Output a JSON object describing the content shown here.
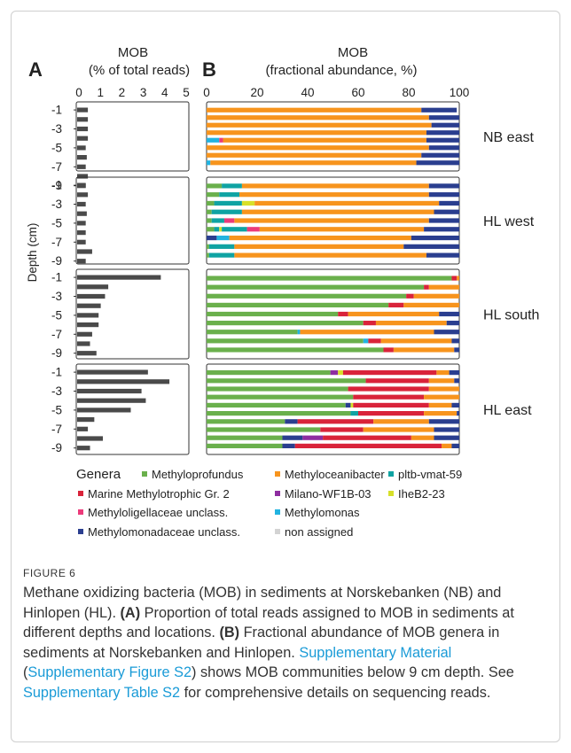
{
  "figure": {
    "label": "FIGURE 6",
    "caption": {
      "intro": "Methane oxidizing bacteria (MOB) in sediments at Norskebanken (NB) and Hinlopen (HL).",
      "a_tag": "(A)",
      "a_text": "Proportion of total reads assigned to MOB in sediments at different depths and locations.",
      "b_tag": "(B)",
      "b_text": "Fractional abundance of MOB genera in sediments at Norskebanken and Hinlopen.",
      "link1": "Supplementary Material",
      "paren_open": "(",
      "link2": "Supplementary Figure S2",
      "paren_close": ")",
      "shows_text": "shows MOB communities below 9 cm depth. See",
      "link3": "Supplementary Table S2",
      "tail_text": "for comprehensive details on sequencing reads."
    }
  },
  "chart_data": [
    {
      "type": "bar",
      "orientation": "horizontal",
      "panel": "A",
      "title": "MOB",
      "subtitle": "(% of total reads)",
      "ylabel": "Depth (cm)",
      "xlim": [
        0,
        5
      ],
      "xticks": [
        "0",
        "1",
        "2",
        "3",
        "4",
        "5"
      ],
      "depth_tick_labels": [
        "-1",
        "-3",
        "-5",
        "-7",
        "-9"
      ],
      "depths": [
        -1,
        -2,
        -3,
        -4,
        -5,
        -6,
        -7,
        -8,
        -9
      ],
      "series": [
        {
          "location": "NB east",
          "values": [
            0.5,
            0.5,
            0.5,
            0.5,
            0.4,
            0.45,
            0.4,
            0.5,
            0.4
          ]
        },
        {
          "location": "HL west",
          "values": [
            0.4,
            0.5,
            0.4,
            0.45,
            0.4,
            0.4,
            0.4,
            0.7,
            0.4
          ]
        },
        {
          "location": "HL south",
          "values": [
            3.9,
            1.45,
            1.3,
            1.1,
            1.0,
            1.0,
            0.7,
            0.6,
            0.9
          ]
        },
        {
          "location": "HL east",
          "values": [
            3.3,
            4.3,
            3.0,
            3.2,
            2.5,
            0.8,
            0.5,
            1.2,
            0.6
          ]
        }
      ]
    },
    {
      "type": "bar",
      "orientation": "horizontal",
      "stacked": true,
      "panel": "B",
      "title": "MOB",
      "subtitle": "(fractional abundance, %)",
      "xlim": [
        0,
        100
      ],
      "xticks": [
        "0",
        "20",
        "40",
        "60",
        "80",
        "100"
      ],
      "legend_title": "Genera",
      "legend": [
        {
          "name": "Methyloprofundus",
          "color": "#6ab04c"
        },
        {
          "name": "Methyloceanibacter",
          "color": "#f7941d"
        },
        {
          "name": "pltb-vmat-59",
          "color": "#0fa3a3"
        },
        {
          "name": "Marine Methylotrophic Gr. 2",
          "color": "#d9233a"
        },
        {
          "name": "Milano-WF1B-03",
          "color": "#8e2da0"
        },
        {
          "name": "IheB2-23",
          "color": "#d7e029"
        },
        {
          "name": "Methyloligellaceae unclass.",
          "color": "#ec3a7a"
        },
        {
          "name": "Methylomonas",
          "color": "#22b3e0"
        },
        {
          "name": "Methylomonadaceae unclass.",
          "color": "#2a3e8f"
        },
        {
          "name": "non assigned",
          "color": "#d3d3d3"
        }
      ],
      "panels": [
        {
          "location": "NB east",
          "rows": [
            [
              [
                1,
                85
              ],
              [
                8,
                14
              ]
            ],
            [
              [
                1,
                88
              ],
              [
                8,
                12
              ]
            ],
            [
              [
                1,
                89
              ],
              [
                8,
                11
              ]
            ],
            [
              [
                1,
                87
              ],
              [
                8,
                13
              ]
            ],
            [
              [
                7,
                5
              ],
              [
                6,
                1.5
              ],
              [
                1,
                80.5
              ],
              [
                8,
                13
              ]
            ],
            [
              [
                1,
                88
              ],
              [
                8,
                12
              ]
            ],
            [
              [
                1,
                85
              ],
              [
                8,
                15
              ]
            ],
            [
              [
                7,
                1.5
              ],
              [
                1,
                81.5
              ],
              [
                8,
                17
              ]
            ]
          ]
        },
        {
          "location": "HL west",
          "rows": [
            [
              [
                0,
                6
              ],
              [
                2,
                8
              ],
              [
                1,
                74
              ],
              [
                8,
                12
              ]
            ],
            [
              [
                0,
                5
              ],
              [
                2,
                8
              ],
              [
                1,
                75
              ],
              [
                8,
                12
              ]
            ],
            [
              [
                0,
                3
              ],
              [
                2,
                11
              ],
              [
                5,
                5
              ],
              [
                1,
                73
              ],
              [
                8,
                8
              ]
            ],
            [
              [
                0,
                2
              ],
              [
                2,
                12
              ],
              [
                1,
                76
              ],
              [
                8,
                10
              ]
            ],
            [
              [
                0,
                2
              ],
              [
                2,
                5
              ],
              [
                6,
                4
              ],
              [
                1,
                77
              ],
              [
                8,
                12
              ]
            ],
            [
              [
                0,
                3
              ],
              [
                2,
                2
              ],
              [
                5,
                1
              ],
              [
                2,
                10
              ],
              [
                6,
                5
              ],
              [
                1,
                65
              ],
              [
                8,
                14
              ]
            ],
            [
              [
                8,
                4
              ],
              [
                7,
                5
              ],
              [
                1,
                72
              ],
              [
                8,
                19
              ]
            ],
            [
              [
                0,
                1
              ],
              [
                2,
                10
              ],
              [
                1,
                67
              ],
              [
                8,
                22
              ]
            ],
            [
              [
                0,
                1
              ],
              [
                2,
                10
              ],
              [
                1,
                76
              ],
              [
                8,
                13
              ]
            ]
          ]
        },
        {
          "location": "HL south",
          "rows": [
            [
              [
                0,
                97
              ],
              [
                3,
                2
              ],
              [
                1,
                1
              ]
            ],
            [
              [
                0,
                86
              ],
              [
                3,
                2
              ],
              [
                1,
                12
              ]
            ],
            [
              [
                0,
                79
              ],
              [
                3,
                3
              ],
              [
                1,
                18
              ]
            ],
            [
              [
                0,
                72
              ],
              [
                3,
                6
              ],
              [
                1,
                22
              ]
            ],
            [
              [
                0,
                52
              ],
              [
                3,
                4
              ],
              [
                1,
                36
              ],
              [
                8,
                8
              ]
            ],
            [
              [
                0,
                62
              ],
              [
                3,
                5
              ],
              [
                1,
                28
              ],
              [
                8,
                5
              ]
            ],
            [
              [
                0,
                36
              ],
              [
                7,
                1
              ],
              [
                1,
                53
              ],
              [
                8,
                10
              ]
            ],
            [
              [
                0,
                62
              ],
              [
                7,
                2
              ],
              [
                3,
                5
              ],
              [
                1,
                28
              ],
              [
                8,
                3
              ]
            ],
            [
              [
                0,
                70
              ],
              [
                3,
                4
              ],
              [
                1,
                24
              ],
              [
                8,
                2
              ]
            ]
          ]
        },
        {
          "location": "HL east",
          "rows": [
            [
              [
                0,
                49
              ],
              [
                4,
                3
              ],
              [
                5,
                2
              ],
              [
                3,
                37
              ],
              [
                1,
                5
              ],
              [
                8,
                4
              ]
            ],
            [
              [
                0,
                63
              ],
              [
                3,
                25
              ],
              [
                1,
                10
              ],
              [
                8,
                2
              ]
            ],
            [
              [
                0,
                56
              ],
              [
                3,
                32
              ],
              [
                1,
                12
              ]
            ],
            [
              [
                0,
                58
              ],
              [
                3,
                28
              ],
              [
                1,
                14
              ]
            ],
            [
              [
                0,
                55
              ],
              [
                8,
                2
              ],
              [
                5,
                1
              ],
              [
                3,
                30
              ],
              [
                1,
                9
              ],
              [
                8,
                3
              ]
            ],
            [
              [
                0,
                57
              ],
              [
                2,
                3
              ],
              [
                3,
                26
              ],
              [
                1,
                13
              ],
              [
                8,
                1
              ]
            ],
            [
              [
                0,
                31
              ],
              [
                8,
                5
              ],
              [
                3,
                30
              ],
              [
                1,
                22
              ],
              [
                8,
                12
              ]
            ],
            [
              [
                0,
                45
              ],
              [
                3,
                17
              ],
              [
                1,
                28
              ],
              [
                8,
                10
              ]
            ],
            [
              [
                0,
                30
              ],
              [
                8,
                8
              ],
              [
                4,
                8
              ],
              [
                3,
                35
              ],
              [
                1,
                9
              ],
              [
                8,
                10
              ]
            ],
            [
              [
                0,
                30
              ],
              [
                8,
                5
              ],
              [
                3,
                58
              ],
              [
                1,
                4
              ],
              [
                8,
                3
              ]
            ]
          ]
        }
      ]
    }
  ]
}
